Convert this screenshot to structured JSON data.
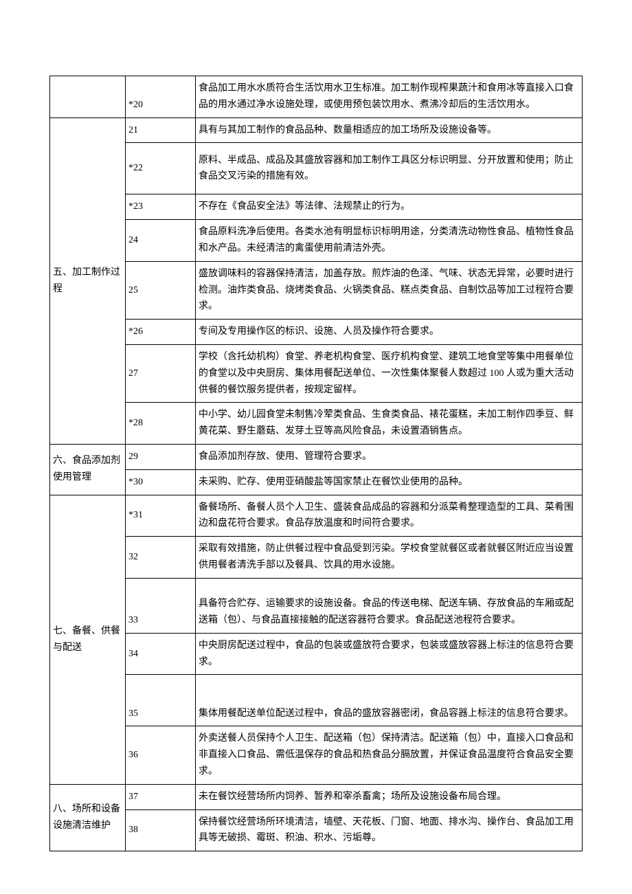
{
  "table": {
    "border_color": "#000000",
    "font_family": "SimSun",
    "font_size": 14,
    "col_widths": {
      "category": 110,
      "number": 102,
      "description": "auto"
    },
    "rows": [
      {
        "cat": "",
        "cat_rowspan": 1,
        "num": "*20",
        "desc": "食品加工用水水质符合生活饮用水卫生标准。加工制作现榨果蔬汁和食用冰等直接入口食品的用水通过净水设施处理，或使用预包装饮用水、煮沸冷却后的生活饮用水。",
        "num_class": "first-num",
        "desc_class": "first-desc"
      },
      {
        "cat": "五、加工制作过程",
        "cat_rowspan": 8,
        "num": "21",
        "desc": "具有与其加工制作的食品品种、数量相适应的加工场所及设施设备等。"
      },
      {
        "num": "*22",
        "desc": "原料、半成品、成品及其盛放容器和加工制作工具区分标识明显、分开放置和使用；防止食品交叉污染的措施有效。",
        "cellclass": "tall"
      },
      {
        "num": "*23",
        "desc": "不存在《食品安全法》等法律、法规禁止的行为。"
      },
      {
        "num": "24",
        "desc": "食品原料洗净后使用。各类水池有明显标识标明用途，分类清洗动物性食品、植物性食品和水产品。未经清洁的禽蛋使用前清洁外壳。"
      },
      {
        "num": "25",
        "desc": "盛放调味料的容器保持清洁，加盖存放。煎炸油的色泽、气味、状态无异常，必要时进行检测。油炸类食品、烧烤类食品、火锅类食品、糕点类食品、自制饮品等加工过程符合要求。"
      },
      {
        "num": "*26",
        "desc": "专间及专用操作区的标识、设施、人员及操作符合要求。"
      },
      {
        "num": "27",
        "desc": "学校（含托幼机构）食堂、养老机构食堂、医疗机构食堂、建筑工地食堂等集中用餐单位的食堂以及中央厨房、集体用餐配送单位、一次性集体聚餐人数超过 100 人或为重大活动供餐的餐饮服务提供者，按规定留样。"
      },
      {
        "num": "*28",
        "desc": "中小学、幼儿园食堂未制售冷荤类食品、生食类食品、裱花蛋糕，未加工制作四季豆、鲜黄花菜、野生蘑菇、发芽土豆等高风险食品，未设置酒销售点。"
      },
      {
        "cat": "六、食品添加剂使用管理",
        "cat_rowspan": 2,
        "num": "29",
        "desc": "食品添加剂存放、使用、管理符合要求。"
      },
      {
        "num": "*30",
        "desc": "未采购、贮存、使用亚硝酸盐等国家禁止在餐饮业使用的品种。"
      },
      {
        "cat": "七、备餐、供餐与配送",
        "cat_rowspan": 6,
        "num": "*31",
        "desc": "备餐场所、备餐人员个人卫生、盛装食品成品的容器和分派菜肴整理造型的工具、菜肴围边和盘花符合要求。食品存放温度和时间符合要求。"
      },
      {
        "num": "32",
        "desc": "采取有效措施，防止供餐过程中食品受到污染。学校食堂就餐区或者就餐区附近应当设置供用餐者清洗手部以及餐具、饮具的用水设施。"
      },
      {
        "num": "33",
        "desc": "具备符合贮存、运输要求的设施设备。食品的传送电梯、配送车辆、存放食品的车厢或配送箱（包）、与食品直接接触的配送容器符合要求。食品配送池程符合要求。",
        "cellclass": "tall2",
        "num_class": "first-num",
        "desc_class": "first-desc"
      },
      {
        "num": "34",
        "desc": "中央厨房配送过程中，食品的包装或盛放符合要求，包装或盛放容器上标注的信息符合要求。"
      },
      {
        "num": "35",
        "desc": "集体用餐配送单位配送过程中，食品的盛放容器密闭，食品容器上标注的信息符合要求。",
        "num_class": "first-num",
        "desc_class": "first-desc",
        "cellclass": "tall"
      },
      {
        "num": "36",
        "desc": "外卖送餐人员保持个人卫生、配送箱（包）保持清洁。配送箱（包）中，直接入口食品和非直接入口食品、需低温保存的食品和热食品分膈放置，并保证食品温度符合食品安全要求。"
      },
      {
        "cat": "八、场所和设备设施清洁维护",
        "cat_rowspan": 2,
        "num": "37",
        "desc": "未在餐饮经营场所内饲养、暂养和宰杀畜禽；场所及设施设备布局合理。"
      },
      {
        "num": "38",
        "desc": "保持餐饮经营场所环境清洁，墙壁、天花板、门窗、地面、排水沟、操作台、食品加工用具等无破损、霉斑、积油、积水、污垢尊。"
      }
    ]
  }
}
